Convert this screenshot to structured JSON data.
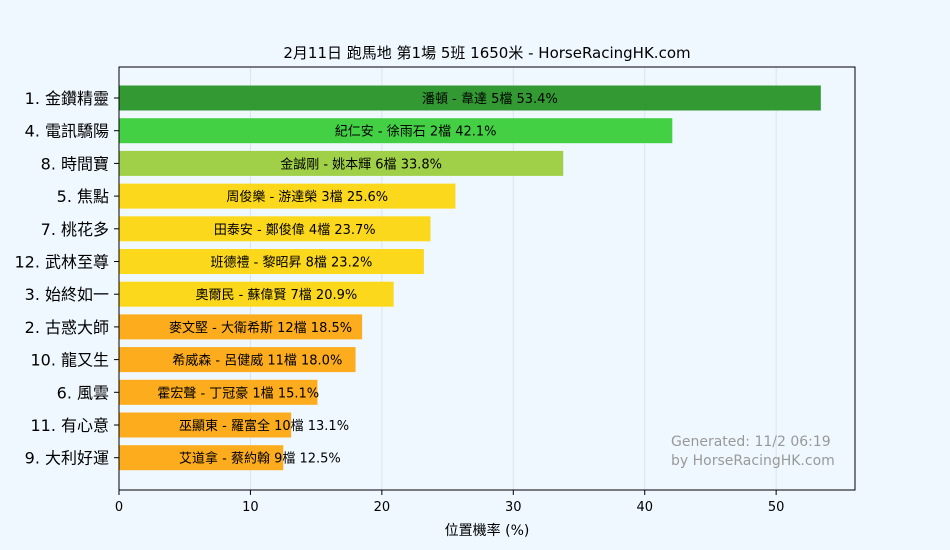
{
  "chart_data": {
    "type": "bar",
    "orientation": "horizontal",
    "title": "2月11日  跑馬地  第1場  5班  1650米 - HorseRacingHK.com",
    "xlabel": "位置機率 (%)",
    "ylabel": "",
    "xlim": [
      0,
      56
    ],
    "xticks": [
      0,
      10,
      20,
      30,
      40,
      50
    ],
    "grid": "vertical",
    "categories": [
      "1. 金鑽精靈",
      "4. 電訊驕陽",
      "8. 時間寶",
      "5. 焦點",
      "7. 桃花多",
      "12. 武林至尊",
      "3. 始終如一",
      "2. 古惑大師",
      "10. 龍又生",
      "6. 風雲",
      "11. 有心意",
      "9. 大利好運"
    ],
    "values": [
      53.4,
      42.1,
      33.8,
      25.6,
      23.7,
      23.2,
      20.9,
      18.5,
      18.0,
      15.1,
      13.1,
      12.5
    ],
    "bar_labels": [
      "潘頓 - 韋達 5檔  53.4%",
      "紀仁安 - 徐雨石 2檔  42.1%",
      "金誠剛 - 姚本輝 6檔  33.8%",
      "周俊樂 - 游達榮 3檔  25.6%",
      "田泰安 - 鄭俊偉 4檔  23.7%",
      "班德禮 - 黎昭昇 8檔  23.2%",
      "奧爾民 - 蘇偉賢 7檔  20.9%",
      "麥文堅 - 大衛希斯 12檔  18.5%",
      "希威森 - 呂健威 11檔  18.0%",
      "霍宏聲 - 丁冠豪 1檔  15.1%",
      "巫顯東 - 羅富全 10檔  13.1%",
      "艾道拿 - 蔡約翰 9檔  12.5%"
    ],
    "colors": [
      "#339933",
      "#44d044",
      "#a0d048",
      "#fcd81c",
      "#fcd81c",
      "#fcd81c",
      "#fcd81c",
      "#fcac1c",
      "#fcac1c",
      "#fcac1c",
      "#fcac1c",
      "#fcac1c"
    ],
    "watermark": [
      "Generated: 11/2 06:19",
      "by HorseRacingHK.com"
    ]
  }
}
